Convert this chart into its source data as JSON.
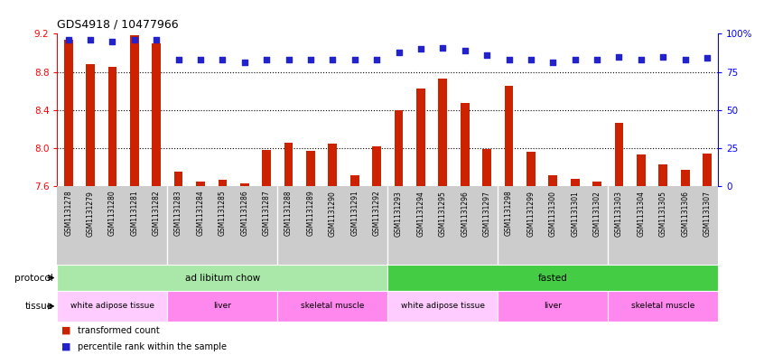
{
  "title": "GDS4918 / 10477966",
  "samples": [
    "GSM1131278",
    "GSM1131279",
    "GSM1131280",
    "GSM1131281",
    "GSM1131282",
    "GSM1131283",
    "GSM1131284",
    "GSM1131285",
    "GSM1131286",
    "GSM1131287",
    "GSM1131288",
    "GSM1131289",
    "GSM1131290",
    "GSM1131291",
    "GSM1131292",
    "GSM1131293",
    "GSM1131294",
    "GSM1131295",
    "GSM1131296",
    "GSM1131297",
    "GSM1131298",
    "GSM1131299",
    "GSM1131300",
    "GSM1131301",
    "GSM1131302",
    "GSM1131303",
    "GSM1131304",
    "GSM1131305",
    "GSM1131306",
    "GSM1131307"
  ],
  "bar_values": [
    9.14,
    8.88,
    8.85,
    9.18,
    9.1,
    7.75,
    7.65,
    7.67,
    7.63,
    7.98,
    8.06,
    7.97,
    8.05,
    7.72,
    8.02,
    8.4,
    8.63,
    8.73,
    8.47,
    7.99,
    8.65,
    7.96,
    7.72,
    7.68,
    7.65,
    8.27,
    7.93,
    7.83,
    7.77,
    7.94
  ],
  "percentile_values": [
    96,
    96,
    95,
    96,
    96,
    83,
    83,
    83,
    81,
    83,
    83,
    83,
    83,
    83,
    83,
    88,
    90,
    91,
    89,
    86,
    83,
    83,
    81,
    83,
    83,
    85,
    83,
    85,
    83,
    84
  ],
  "ylim_left": [
    7.6,
    9.2
  ],
  "ylim_right": [
    0,
    100
  ],
  "yticks_left": [
    7.6,
    8.0,
    8.4,
    8.8,
    9.2
  ],
  "yticks_right": [
    0,
    25,
    50,
    75,
    100
  ],
  "bar_color": "#cc2200",
  "dot_color": "#2222cc",
  "grid_lines": [
    8.0,
    8.4,
    8.8
  ],
  "protocol_groups": [
    {
      "label": "ad libitum chow",
      "start": 0,
      "end": 14,
      "color": "#aae8aa"
    },
    {
      "label": "fasted",
      "start": 15,
      "end": 29,
      "color": "#44cc44"
    }
  ],
  "tissue_groups": [
    {
      "label": "white adipose tissue",
      "start": 0,
      "end": 4,
      "color": "#ffccff"
    },
    {
      "label": "liver",
      "start": 5,
      "end": 9,
      "color": "#ff88ee"
    },
    {
      "label": "skeletal muscle",
      "start": 10,
      "end": 14,
      "color": "#ff88ee"
    },
    {
      "label": "white adipose tissue",
      "start": 15,
      "end": 19,
      "color": "#ffccff"
    },
    {
      "label": "liver",
      "start": 20,
      "end": 24,
      "color": "#ff88ee"
    },
    {
      "label": "skeletal muscle",
      "start": 25,
      "end": 29,
      "color": "#ff88ee"
    }
  ],
  "legend_items": [
    {
      "label": "transformed count",
      "color": "#cc2200"
    },
    {
      "label": "percentile rank within the sample",
      "color": "#2222cc"
    }
  ],
  "bar_width": 0.4
}
